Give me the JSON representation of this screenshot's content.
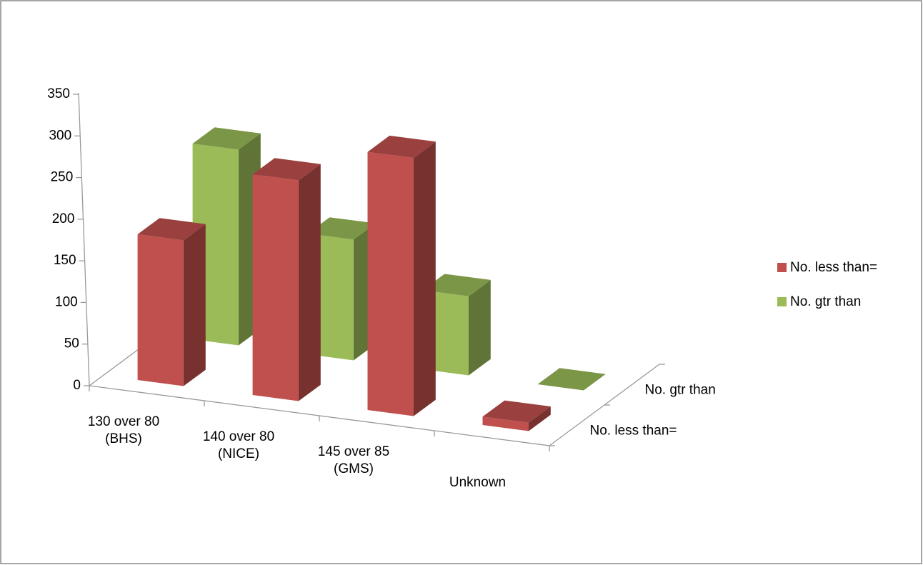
{
  "chart_data": {
    "type": "bar3d",
    "categories": [
      "130 over 80 (BHS)",
      "140 over 80 (NICE)",
      "145 over 85 (GMS)",
      "Unknown"
    ],
    "series": [
      {
        "name": "No. less than=",
        "color": "#c0504d",
        "values": [
          175,
          265,
          310,
          10
        ]
      },
      {
        "name": "No. gtr than",
        "color": "#9bbb59",
        "values": [
          235,
          145,
          95,
          0
        ]
      }
    ],
    "ylim": [
      0,
      350
    ],
    "yticks": [
      0,
      50,
      100,
      150,
      200,
      250,
      300,
      350
    ],
    "legend": "right"
  }
}
